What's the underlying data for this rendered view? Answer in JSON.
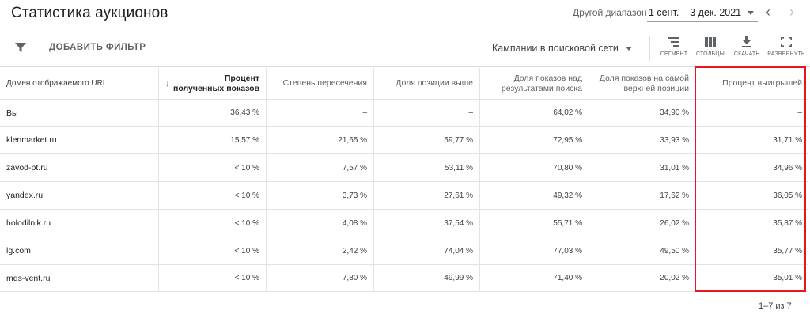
{
  "header": {
    "title": "Статистика аукционов",
    "range_label": "Другой диапазон",
    "range_value": "1 сент. – 3 дек. 2021",
    "prev_icon": "chevron-left-icon",
    "next_icon": "chevron-right-icon"
  },
  "toolbar": {
    "filter_label": "ДОБАВИТЬ ФИЛЬТР",
    "campaign_select": "Кампании в поисковой сети",
    "segment_label": "СЕГМЕНТ",
    "columns_label": "СТОЛБЦЫ",
    "download_label": "СКАЧАТЬ",
    "expand_label": "РАЗВЕРНУТЬ"
  },
  "table": {
    "columns": [
      "Домен отображаемого URL",
      "Процент полученных показов",
      "Степень пересечения",
      "Доля позиции выше",
      "Доля показов над результатами поиска",
      "Доля показов на самой верхней позиции",
      "Процент выигрышей"
    ],
    "sort_column_lines": [
      "Процент",
      "полученных показов"
    ],
    "rows": [
      [
        "Вы",
        "36,43 %",
        "–",
        "–",
        "64,02 %",
        "34,90 %",
        "–"
      ],
      [
        "klenmarket.ru",
        "15,57 %",
        "21,65 %",
        "59,77 %",
        "72,95 %",
        "33,93 %",
        "31,71 %"
      ],
      [
        "zavod-pt.ru",
        "< 10 %",
        "7,57 %",
        "53,11 %",
        "70,80 %",
        "31,01 %",
        "34,96 %"
      ],
      [
        "yandex.ru",
        "< 10 %",
        "3,73 %",
        "27,61 %",
        "49,32 %",
        "17,62 %",
        "36,05 %"
      ],
      [
        "holodilnik.ru",
        "< 10 %",
        "4,08 %",
        "37,54 %",
        "55,71 %",
        "26,02 %",
        "35,87 %"
      ],
      [
        "lg.com",
        "< 10 %",
        "2,42 %",
        "74,04 %",
        "77,03 %",
        "49,50 %",
        "35,77 %"
      ],
      [
        "mds-vent.ru",
        "< 10 %",
        "7,80 %",
        "49,99 %",
        "71,40 %",
        "20,02 %",
        "35,01 %"
      ]
    ]
  },
  "pager": {
    "text": "1–7 из 7"
  },
  "colors": {
    "highlight": "#e8151c",
    "grid": "#e3e3e3",
    "text": "#202124",
    "muted": "#5f6368"
  }
}
